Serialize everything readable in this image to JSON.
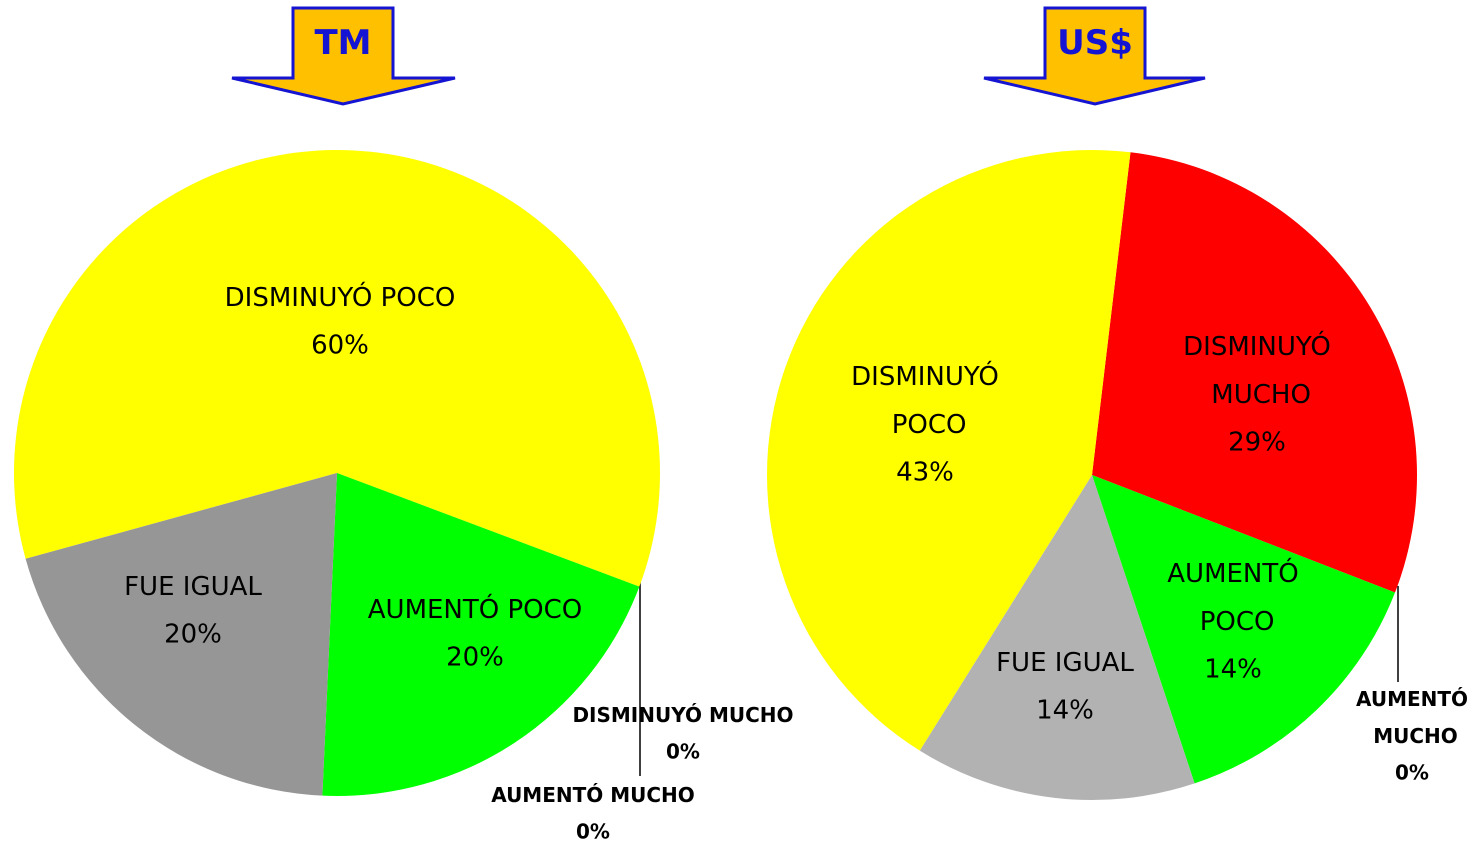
{
  "chart_data": [
    {
      "type": "pie",
      "title": "TM",
      "categories": [
        "DISMINUYÓ POCO",
        "DISMINUYÓ MUCHO",
        "AUMENTÓ MUCHO",
        "AUMENTÓ POCO",
        "FUE IGUAL"
      ],
      "values": [
        60,
        0,
        0,
        20,
        20
      ],
      "value_labels": [
        "60%",
        "0%",
        "0%",
        "20%",
        "20%"
      ],
      "colors": [
        "#ffff00",
        "#ff0000",
        "#0000ff",
        "#00ff00",
        "#969696"
      ]
    },
    {
      "type": "pie",
      "title": "US$",
      "categories": [
        "DISMINUYÓ MUCHO",
        "AUMENTÓ MUCHO",
        "AUMENTÓ POCO",
        "FUE IGUAL",
        "DISMINUYÓ POCO"
      ],
      "values": [
        29,
        0,
        14,
        14,
        43
      ],
      "value_labels": [
        "29%",
        "0%",
        "14%",
        "14%",
        "43%"
      ],
      "colors": [
        "#ff0000",
        "#0000ff",
        "#00ff00",
        "#b2b2b2",
        "#ffff00"
      ]
    }
  ]
}
